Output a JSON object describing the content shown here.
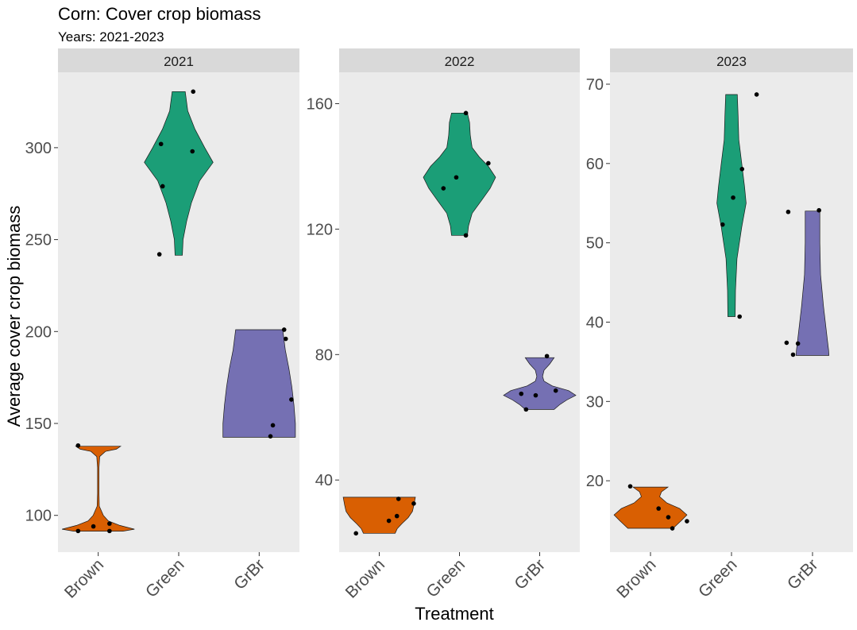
{
  "chart_data": {
    "type": "violin",
    "title": "Corn: Cover crop biomass",
    "subtitle": "Years: 2021-2023",
    "xlabel": "Treatment",
    "ylabel": "Average cover crop biomass",
    "categories": [
      "Brown",
      "Green",
      "GrBr"
    ],
    "colors": {
      "Brown": "#d95f02",
      "Green": "#1b9e77",
      "GrBr": "#7570b3"
    },
    "panels": [
      {
        "year": "2021",
        "ylim": [
          80,
          341
        ],
        "yticks": [
          100,
          150,
          200,
          250,
          300
        ],
        "violins": [
          {
            "category": "Brown",
            "min": 91.4,
            "max": 137.6,
            "profile": [
              [
                91.4,
                0.68
              ],
              [
                92.5,
                1.0
              ],
              [
                94.5,
                0.6
              ],
              [
                97,
                0.28
              ],
              [
                100,
                0.14
              ],
              [
                105,
                0.03
              ],
              [
                112,
                0.02
              ],
              [
                126,
                0.02
              ],
              [
                132,
                0.04
              ],
              [
                134.8,
                0.2
              ],
              [
                136,
                0.5
              ],
              [
                137.6,
                0.62
              ]
            ]
          },
          {
            "category": "Green",
            "min": 241.5,
            "max": 330.5,
            "profile": [
              [
                241.5,
                0.1
              ],
              [
                250,
                0.12
              ],
              [
                260,
                0.22
              ],
              [
                270,
                0.35
              ],
              [
                282,
                0.58
              ],
              [
                292,
                0.95
              ],
              [
                300,
                0.72
              ],
              [
                310,
                0.45
              ],
              [
                320,
                0.25
              ],
              [
                330.5,
                0.18
              ]
            ]
          },
          {
            "category": "GrBr",
            "min": 142.5,
            "max": 201,
            "profile": [
              [
                142.5,
                1.0
              ],
              [
                150,
                1.0
              ],
              [
                160,
                0.96
              ],
              [
                170,
                0.9
              ],
              [
                180,
                0.82
              ],
              [
                190,
                0.72
              ],
              [
                201,
                0.65
              ]
            ]
          }
        ],
        "points": [
          {
            "category": "Brown",
            "x_offset": -0.25,
            "y": 138
          },
          {
            "category": "Brown",
            "x_offset": -0.25,
            "y": 91.5
          },
          {
            "category": "Brown",
            "x_offset": -0.06,
            "y": 94
          },
          {
            "category": "Brown",
            "x_offset": 0.14,
            "y": 95.5
          },
          {
            "category": "Brown",
            "x_offset": 0.14,
            "y": 91.5
          },
          {
            "category": "Green",
            "x_offset": -0.24,
            "y": 242
          },
          {
            "category": "Green",
            "x_offset": -0.2,
            "y": 279
          },
          {
            "category": "Green",
            "x_offset": -0.22,
            "y": 302
          },
          {
            "category": "Green",
            "x_offset": 0.17,
            "y": 298
          },
          {
            "category": "Green",
            "x_offset": 0.18,
            "y": 330.5
          },
          {
            "category": "GrBr",
            "x_offset": 0.14,
            "y": 143
          },
          {
            "category": "GrBr",
            "x_offset": 0.17,
            "y": 149
          },
          {
            "category": "GrBr",
            "x_offset": 0.31,
            "y": 201
          },
          {
            "category": "GrBr",
            "x_offset": 0.33,
            "y": 196
          },
          {
            "category": "GrBr",
            "x_offset": 0.4,
            "y": 163
          }
        ]
      },
      {
        "year": "2022",
        "ylim": [
          17,
          170
        ],
        "yticks": [
          40,
          80,
          120,
          160
        ],
        "violins": [
          {
            "category": "Brown",
            "min": 23,
            "max": 34.5,
            "profile": [
              [
                23,
                0.44
              ],
              [
                24.5,
                0.5
              ],
              [
                26,
                0.62
              ],
              [
                28,
                0.8
              ],
              [
                30,
                0.92
              ],
              [
                32,
                0.96
              ],
              [
                34.5,
                1.0
              ]
            ]
          },
          {
            "category": "Green",
            "min": 118,
            "max": 157,
            "profile": [
              [
                118,
                0.22
              ],
              [
                121,
                0.25
              ],
              [
                125,
                0.35
              ],
              [
                129,
                0.6
              ],
              [
                133,
                0.85
              ],
              [
                136.5,
                1.0
              ],
              [
                140,
                0.8
              ],
              [
                143,
                0.55
              ],
              [
                146,
                0.35
              ],
              [
                150,
                0.3
              ],
              [
                154,
                0.28
              ],
              [
                157,
                0.22
              ]
            ]
          },
          {
            "category": "GrBr",
            "min": 62.5,
            "max": 79,
            "profile": [
              [
                62.5,
                0.4
              ],
              [
                64,
                0.55
              ],
              [
                65.5,
                0.75
              ],
              [
                67,
                1.0
              ],
              [
                68.5,
                0.8
              ],
              [
                70,
                0.35
              ],
              [
                71.5,
                0.12
              ],
              [
                73,
                0.08
              ],
              [
                75,
                0.12
              ],
              [
                77,
                0.28
              ],
              [
                79,
                0.4
              ]
            ]
          }
        ],
        "points": [
          {
            "category": "Brown",
            "x_offset": -0.29,
            "y": 23
          },
          {
            "category": "Brown",
            "x_offset": 0.12,
            "y": 27
          },
          {
            "category": "Brown",
            "x_offset": 0.22,
            "y": 28.5
          },
          {
            "category": "Brown",
            "x_offset": 0.24,
            "y": 34
          },
          {
            "category": "Brown",
            "x_offset": 0.43,
            "y": 32.5
          },
          {
            "category": "Green",
            "x_offset": -0.2,
            "y": 133
          },
          {
            "category": "Green",
            "x_offset": -0.04,
            "y": 136.5
          },
          {
            "category": "Green",
            "x_offset": 0.08,
            "y": 118
          },
          {
            "category": "Green",
            "x_offset": 0.08,
            "y": 157
          },
          {
            "category": "Green",
            "x_offset": 0.36,
            "y": 141
          },
          {
            "category": "GrBr",
            "x_offset": -0.23,
            "y": 67.5
          },
          {
            "category": "GrBr",
            "x_offset": -0.17,
            "y": 62.5
          },
          {
            "category": "GrBr",
            "x_offset": -0.05,
            "y": 67
          },
          {
            "category": "GrBr",
            "x_offset": 0.09,
            "y": 79.5
          },
          {
            "category": "GrBr",
            "x_offset": 0.2,
            "y": 68.5
          }
        ]
      },
      {
        "year": "2023",
        "ylim": [
          11,
          71.5
        ],
        "yticks": [
          20,
          30,
          40,
          50,
          60,
          70
        ],
        "violins": [
          {
            "category": "Brown",
            "min": 14,
            "max": 19.2,
            "profile": [
              [
                14,
                0.62
              ],
              [
                15,
                0.85
              ],
              [
                15.7,
                1.0
              ],
              [
                16.5,
                0.8
              ],
              [
                17.2,
                0.45
              ],
              [
                18,
                0.25
              ],
              [
                18.6,
                0.3
              ],
              [
                19.2,
                0.48
              ]
            ]
          },
          {
            "category": "Green",
            "min": 40.7,
            "max": 68.7,
            "profile": [
              [
                40.7,
                0.1
              ],
              [
                44,
                0.11
              ],
              [
                48,
                0.15
              ],
              [
                52,
                0.28
              ],
              [
                55,
                0.4
              ],
              [
                57,
                0.36
              ],
              [
                60,
                0.28
              ],
              [
                63,
                0.2
              ],
              [
                66,
                0.18
              ],
              [
                68.7,
                0.16
              ]
            ]
          },
          {
            "category": "GrBr",
            "min": 35.8,
            "max": 54,
            "profile": [
              [
                35.8,
                0.45
              ],
              [
                36.5,
                0.44
              ],
              [
                38,
                0.4
              ],
              [
                42,
                0.3
              ],
              [
                46,
                0.22
              ],
              [
                50,
                0.2
              ],
              [
                54,
                0.2
              ]
            ]
          }
        ],
        "points": [
          {
            "category": "Brown",
            "x_offset": -0.25,
            "y": 19.3
          },
          {
            "category": "Brown",
            "x_offset": 0.1,
            "y": 16.5
          },
          {
            "category": "Brown",
            "x_offset": 0.22,
            "y": 15.4
          },
          {
            "category": "Brown",
            "x_offset": 0.27,
            "y": 14
          },
          {
            "category": "Brown",
            "x_offset": 0.45,
            "y": 14.9
          },
          {
            "category": "Green",
            "x_offset": -0.11,
            "y": 52.3
          },
          {
            "category": "Green",
            "x_offset": 0.02,
            "y": 55.7
          },
          {
            "category": "Green",
            "x_offset": 0.1,
            "y": 40.7
          },
          {
            "category": "Green",
            "x_offset": 0.13,
            "y": 59.3
          },
          {
            "category": "Green",
            "x_offset": 0.31,
            "y": 68.7
          },
          {
            "category": "GrBr",
            "x_offset": -0.32,
            "y": 37.4
          },
          {
            "category": "GrBr",
            "x_offset": -0.24,
            "y": 35.9
          },
          {
            "category": "GrBr",
            "x_offset": -0.18,
            "y": 37.3
          },
          {
            "category": "GrBr",
            "x_offset": -0.3,
            "y": 53.9
          },
          {
            "category": "GrBr",
            "x_offset": 0.08,
            "y": 54.1
          }
        ]
      }
    ]
  }
}
